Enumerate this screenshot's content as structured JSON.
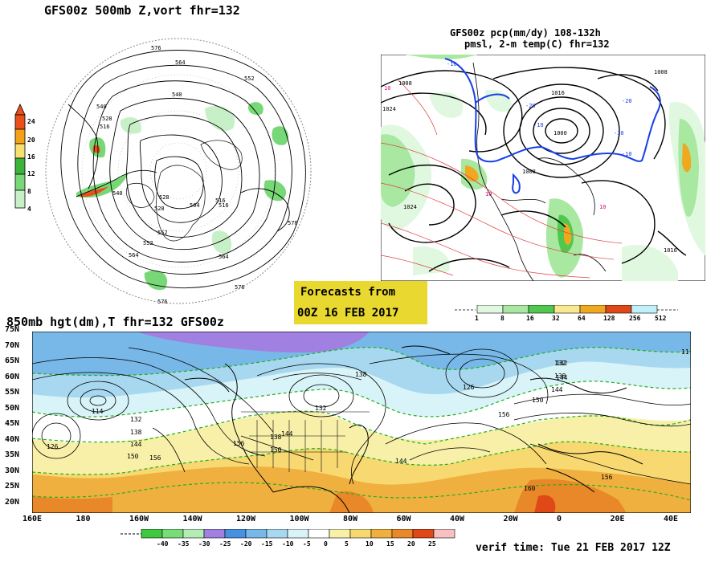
{
  "panel_vort": {
    "title": "GFS00z   500mb Z,vort    fhr=132",
    "colorbar": {
      "ticks": [
        "24",
        "20",
        "16",
        "12",
        "8",
        "4"
      ],
      "colors": [
        "#e8501c",
        "#f4a018",
        "#f8e070",
        "#3cb43c",
        "#78d878",
        "#c8f0c8"
      ]
    },
    "contour_labels": [
      "576",
      "564",
      "552",
      "540",
      "528",
      "516",
      "540",
      "552",
      "564",
      "576",
      "540",
      "516",
      "552",
      "564",
      "576",
      "576",
      "528",
      "504",
      "516",
      "528"
    ]
  },
  "panel_pcp": {
    "title_line1": "GFS00z pcp(mm/dy) 108-132h",
    "title_line2": "pmsl, 2-m temp(C)  fhr=132",
    "colorbar": {
      "ticks": [
        "1",
        "8",
        "16",
        "32",
        "64",
        "128",
        "256",
        "512"
      ],
      "colors": [
        "#e0f8e0",
        "#a8e8a0",
        "#50c850",
        "#f8e890",
        "#f0a820",
        "#e04818",
        "#c0f0f8"
      ]
    },
    "pressure_labels": [
      "1008",
      "1024",
      "1016",
      "1000",
      "1008",
      "1024",
      "1008",
      "1016"
    ],
    "temp_labels": [
      "-10",
      "-20",
      "-30",
      "-10",
      "-20",
      "10",
      "10",
      "10",
      "-10"
    ]
  },
  "forecast_box": {
    "line1": "Forecasts from",
    "line2": "00Z 16 FEB 2017",
    "color": "#e8d830"
  },
  "panel_850": {
    "title": "850mb hgt(dm),T  fhr=132 GFS00z",
    "lat_labels": [
      "75N",
      "70N",
      "65N",
      "60N",
      "55N",
      "50N",
      "45N",
      "40N",
      "35N",
      "30N",
      "25N",
      "20N"
    ],
    "lon_labels": [
      "160E",
      "180",
      "160W",
      "140W",
      "120W",
      "100W",
      "80W",
      "60W",
      "40W",
      "20W",
      "0",
      "20E",
      "40E"
    ],
    "height_labels": [
      "114",
      "132",
      "138",
      "144",
      "150",
      "156",
      "126",
      "132",
      "138",
      "144",
      "150",
      "156",
      "138",
      "132",
      "144",
      "126",
      "132",
      "138",
      "144",
      "156",
      "150",
      "160",
      "144",
      "11",
      "156"
    ],
    "colorbar": {
      "ticks": [
        "-40",
        "-35",
        "-30",
        "-25",
        "-20",
        "-15",
        "-10",
        "-5",
        "0",
        "5",
        "10",
        "15",
        "20",
        "25"
      ],
      "colors": [
        "#40c840",
        "#78dc78",
        "#b4ecb4",
        "#a080e0",
        "#4890e0",
        "#78b8e8",
        "#a8d8f0",
        "#d8f4f8",
        "#ffffff",
        "#f8f0a8",
        "#f8d870",
        "#f0b040",
        "#e88828",
        "#e04818",
        "#f8c0c0"
      ]
    },
    "verif_time": "verif time: Tue 21 FEB 2017 12Z"
  }
}
